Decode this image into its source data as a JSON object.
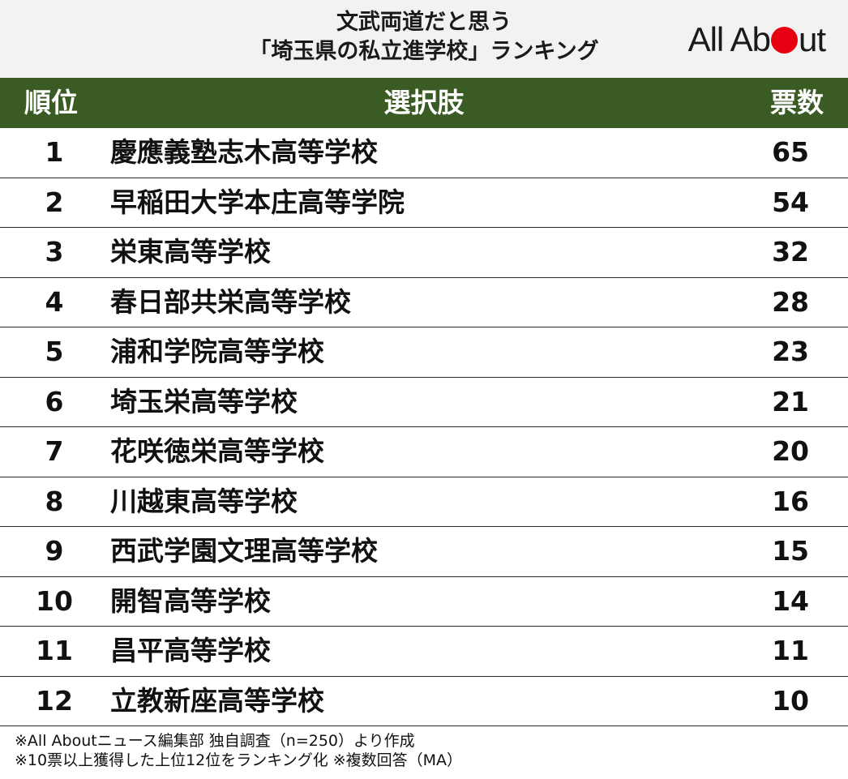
{
  "header": {
    "title_line1": "文武両道だと思う",
    "title_line2": "「埼玉県の私立進学校」ランキング",
    "logo_part1": "All Ab",
    "logo_part2": "ut",
    "logo_color": "#e60012"
  },
  "table": {
    "columns": [
      "順位",
      "選択肢",
      "票数"
    ],
    "header_color": "#3b5b24"
  },
  "chart_data": {
    "type": "table",
    "title": "文武両道だと思う「埼玉県の私立進学校」ランキング",
    "columns": [
      "順位",
      "選択肢",
      "票数"
    ],
    "rows": [
      {
        "rank": "1",
        "name": "慶應義塾志木高等学校",
        "votes": 65
      },
      {
        "rank": "2",
        "name": "早稲田大学本庄高等学院",
        "votes": 54
      },
      {
        "rank": "3",
        "name": "栄東高等学校",
        "votes": 32
      },
      {
        "rank": "4",
        "name": "春日部共栄高等学校",
        "votes": 28
      },
      {
        "rank": "5",
        "name": "浦和学院高等学校",
        "votes": 23
      },
      {
        "rank": "6",
        "name": "埼玉栄高等学校",
        "votes": 21
      },
      {
        "rank": "7",
        "name": "花咲徳栄高等学校",
        "votes": 20
      },
      {
        "rank": "8",
        "name": "川越東高等学校",
        "votes": 16
      },
      {
        "rank": "9",
        "name": "西武学園文理高等学校",
        "votes": 15
      },
      {
        "rank": "10",
        "name": "開智高等学校",
        "votes": 14
      },
      {
        "rank": "11",
        "name": "昌平高等学校",
        "votes": 11
      },
      {
        "rank": "12",
        "name": "立教新座高等学校",
        "votes": 10
      }
    ]
  },
  "notes": {
    "line1": "※All Aboutニュース編集部 独自調査（n=250）より作成",
    "line2": "※10票以上獲得した上位12位をランキング化 ※複数回答（MA）"
  }
}
